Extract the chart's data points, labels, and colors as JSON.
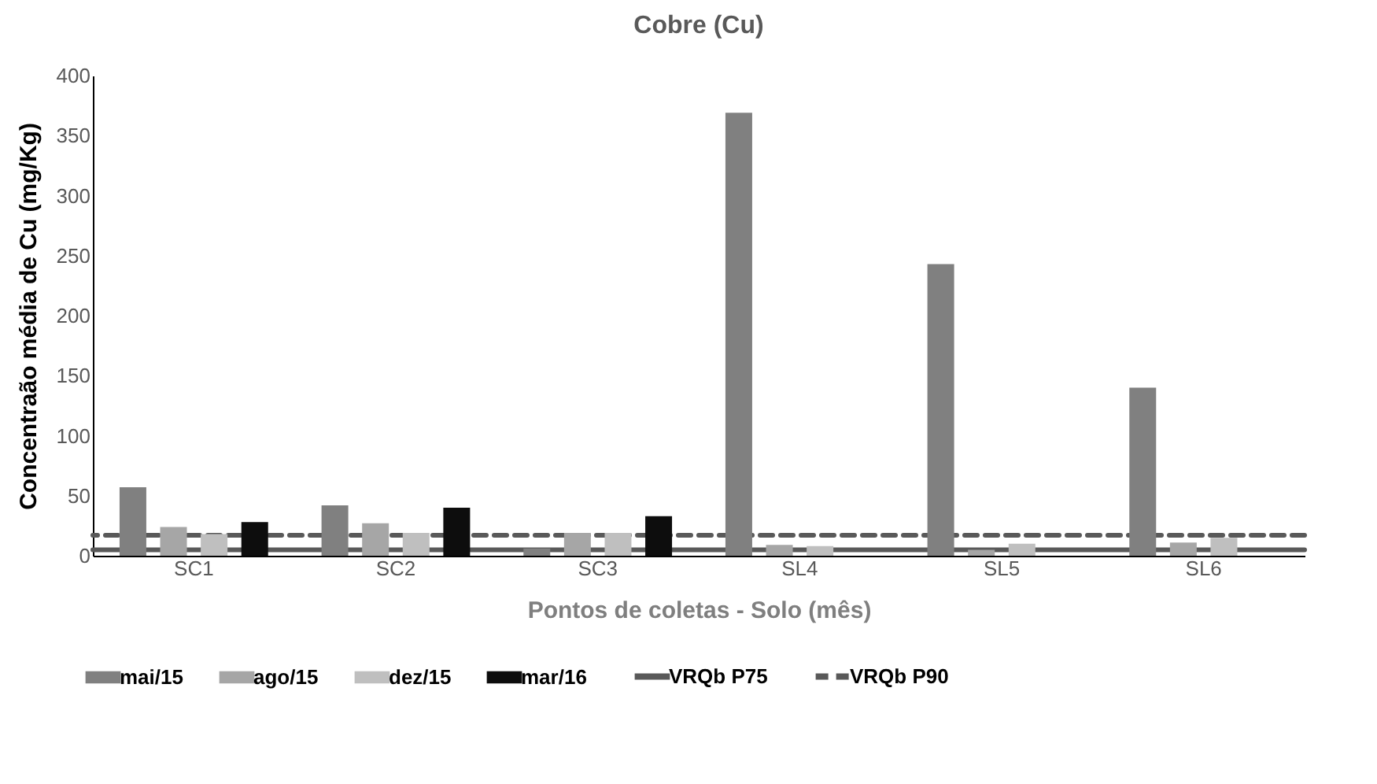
{
  "chart_data": {
    "type": "bar",
    "title": "Cobre (Cu)",
    "xlabel": "Pontos de coletas - Solo (mês)",
    "ylabel": "Concentraão média de Cu (mg/Kg)",
    "categories": [
      "SC1",
      "SC2",
      "SC3",
      "SL4",
      "SL5",
      "SL6"
    ],
    "series": [
      {
        "name": "mai/15",
        "color": "#808080",
        "values": [
          57,
          42,
          6,
          369,
          243,
          140
        ]
      },
      {
        "name": "ago/15",
        "color": "#a6a6a6",
        "values": [
          24,
          27,
          19,
          9,
          5,
          11
        ]
      },
      {
        "name": "dez/15",
        "color": "#bfbfbf",
        "values": [
          18,
          19,
          19,
          8,
          10,
          15
        ]
      },
      {
        "name": "mar/16",
        "color": "#0d0d0d",
        "values": [
          28,
          40,
          33,
          null,
          null,
          null
        ]
      }
    ],
    "ref_lines": [
      {
        "axis": "y",
        "value": 5,
        "label": "VRQb P75",
        "color": "#595959",
        "line_style": "solid"
      },
      {
        "axis": "y",
        "value": 17,
        "label": "VRQb P90",
        "color": "#595959",
        "line_style": "dashed"
      }
    ],
    "ylim": [
      0,
      400
    ],
    "yticks": [
      0,
      50,
      100,
      150,
      200,
      250,
      300,
      350,
      400
    ],
    "grid": false,
    "legend": "bottom"
  }
}
